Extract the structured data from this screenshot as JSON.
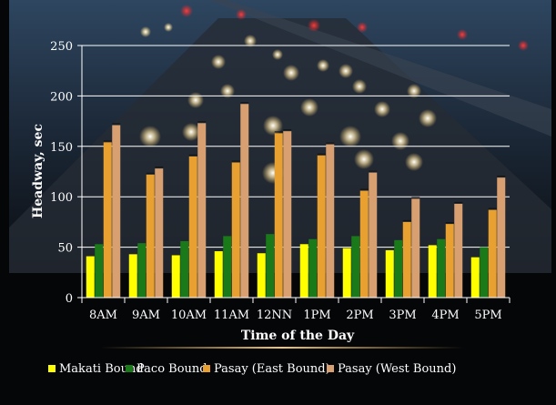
{
  "chart_data": {
    "type": "bar",
    "title": "",
    "xlabel": "Time of the Day",
    "ylabel": "Headway, sec",
    "ylim": [
      0,
      250
    ],
    "yticks": [
      0,
      50,
      100,
      150,
      200,
      250
    ],
    "grid": true,
    "legend_position": "bottom",
    "categories": [
      "8AM",
      "9AM",
      "10AM",
      "11AM",
      "12NN",
      "1PM",
      "2PM",
      "3PM",
      "4PM",
      "5PM"
    ],
    "series": [
      {
        "name": "Makati Bound",
        "color": "#ffff00",
        "values": [
          41,
          43,
          42,
          46,
          44,
          53,
          49,
          47,
          52,
          40
        ]
      },
      {
        "name": "Paco Bound",
        "color": "#1a7a1a",
        "values": [
          53,
          54,
          56,
          61,
          63,
          58,
          61,
          57,
          58,
          50
        ]
      },
      {
        "name": "Pasay (East Bound)",
        "color": "#e8a030",
        "values": [
          154,
          122,
          140,
          134,
          163,
          141,
          106,
          75,
          73,
          87
        ]
      },
      {
        "name": "Pasay (West Bound)",
        "color": "#d8a070",
        "values": [
          171,
          128,
          173,
          192,
          165,
          152,
          124,
          98,
          93,
          119
        ]
      }
    ]
  }
}
